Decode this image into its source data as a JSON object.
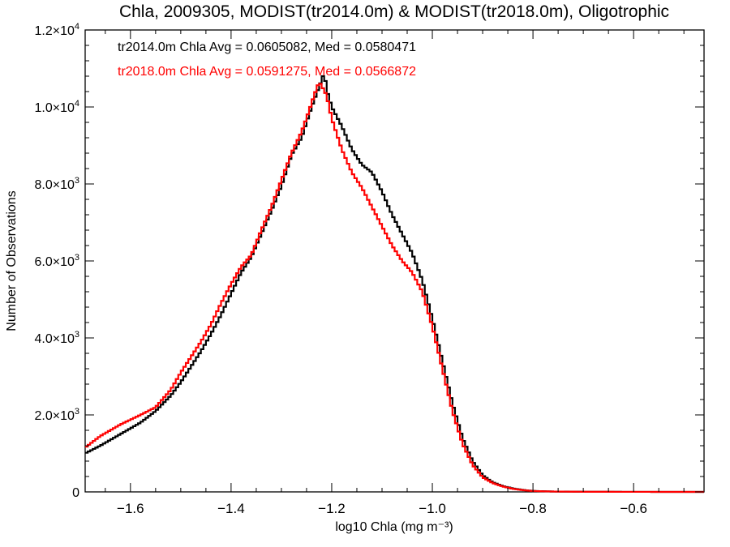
{
  "chart_data": {
    "type": "line",
    "title": "Chla, 2009305, MODIST(tr2014.0m) & MODIST(tr2018.0m), Oligotrophic",
    "xlabel": "log10 Chla (mg m⁻³)",
    "ylabel": "Number of Observations",
    "xlim": [
      -1.69,
      -0.46
    ],
    "ylim": [
      0,
      12000
    ],
    "x_ticks": [
      -1.6,
      -1.4,
      -1.2,
      -1.0,
      -0.8,
      -0.6
    ],
    "x_tick_labels": [
      "−1.6",
      "−1.4",
      "−1.2",
      "−1.0",
      "−0.8",
      "−0.6"
    ],
    "y_ticks": [
      {
        "value": 0,
        "mantissa": "0",
        "exponent": ""
      },
      {
        "value": 2000,
        "mantissa": "2.0×10",
        "exponent": "3"
      },
      {
        "value": 4000,
        "mantissa": "4.0×10",
        "exponent": "3"
      },
      {
        "value": 6000,
        "mantissa": "6.0×10",
        "exponent": "3"
      },
      {
        "value": 8000,
        "mantissa": "8.0×10",
        "exponent": "3"
      },
      {
        "value": 10000,
        "mantissa": "1.0×10",
        "exponent": "4"
      },
      {
        "value": 12000,
        "mantissa": "1.2×10",
        "exponent": "4"
      }
    ],
    "grid": false,
    "step": "histogram",
    "annotations": [
      {
        "text": "tr2014.0m Chla Avg = 0.0605082, Med = 0.0580471",
        "color": "#000000"
      },
      {
        "text": "tr2018.0m Chla Avg = 0.0591275, Med = 0.0566872",
        "color": "#ff0000"
      }
    ],
    "series": [
      {
        "color": "#000000",
        "points": [
          [
            -1.69,
            1000
          ],
          [
            -1.66,
            1200
          ],
          [
            -1.62,
            1500
          ],
          [
            -1.58,
            1800
          ],
          [
            -1.55,
            2100
          ],
          [
            -1.52,
            2500
          ],
          [
            -1.5,
            2850
          ],
          [
            -1.48,
            3250
          ],
          [
            -1.46,
            3650
          ],
          [
            -1.44,
            4100
          ],
          [
            -1.42,
            4600
          ],
          [
            -1.4,
            5150
          ],
          [
            -1.38,
            5700
          ],
          [
            -1.36,
            6100
          ],
          [
            -1.34,
            6700
          ],
          [
            -1.32,
            7300
          ],
          [
            -1.3,
            7950
          ],
          [
            -1.28,
            8750
          ],
          [
            -1.26,
            9200
          ],
          [
            -1.24,
            10000
          ],
          [
            -1.23,
            10350
          ],
          [
            -1.22,
            10700
          ],
          [
            -1.215,
            10900
          ],
          [
            -1.21,
            10450
          ],
          [
            -1.2,
            10000
          ],
          [
            -1.18,
            9500
          ],
          [
            -1.16,
            8900
          ],
          [
            -1.14,
            8500
          ],
          [
            -1.12,
            8300
          ],
          [
            -1.1,
            7800
          ],
          [
            -1.08,
            7200
          ],
          [
            -1.06,
            6700
          ],
          [
            -1.04,
            6200
          ],
          [
            -1.02,
            5500
          ],
          [
            -1.0,
            4500
          ],
          [
            -0.98,
            3400
          ],
          [
            -0.96,
            2300
          ],
          [
            -0.94,
            1400
          ],
          [
            -0.92,
            800
          ],
          [
            -0.9,
            430
          ],
          [
            -0.88,
            250
          ],
          [
            -0.86,
            150
          ],
          [
            -0.84,
            90
          ],
          [
            -0.82,
            50
          ],
          [
            -0.8,
            25
          ],
          [
            -0.76,
            10
          ],
          [
            -0.7,
            4
          ],
          [
            -0.6,
            1
          ],
          [
            -0.46,
            0
          ]
        ]
      },
      {
        "color": "#ff0000",
        "points": [
          [
            -1.69,
            1150
          ],
          [
            -1.66,
            1450
          ],
          [
            -1.62,
            1750
          ],
          [
            -1.58,
            2000
          ],
          [
            -1.55,
            2200
          ],
          [
            -1.52,
            2650
          ],
          [
            -1.5,
            3100
          ],
          [
            -1.48,
            3500
          ],
          [
            -1.46,
            3900
          ],
          [
            -1.44,
            4350
          ],
          [
            -1.42,
            4900
          ],
          [
            -1.4,
            5400
          ],
          [
            -1.38,
            5850
          ],
          [
            -1.36,
            6150
          ],
          [
            -1.34,
            6800
          ],
          [
            -1.32,
            7400
          ],
          [
            -1.3,
            8100
          ],
          [
            -1.28,
            8800
          ],
          [
            -1.26,
            9350
          ],
          [
            -1.245,
            9900
          ],
          [
            -1.235,
            10300
          ],
          [
            -1.225,
            10650
          ],
          [
            -1.22,
            10550
          ],
          [
            -1.21,
            10300
          ],
          [
            -1.2,
            9700
          ],
          [
            -1.18,
            8900
          ],
          [
            -1.16,
            8300
          ],
          [
            -1.14,
            7900
          ],
          [
            -1.12,
            7400
          ],
          [
            -1.1,
            6900
          ],
          [
            -1.08,
            6400
          ],
          [
            -1.06,
            6000
          ],
          [
            -1.04,
            5700
          ],
          [
            -1.02,
            5200
          ],
          [
            -1.0,
            4300
          ],
          [
            -0.98,
            3200
          ],
          [
            -0.96,
            2100
          ],
          [
            -0.94,
            1250
          ],
          [
            -0.92,
            700
          ],
          [
            -0.9,
            380
          ],
          [
            -0.88,
            230
          ],
          [
            -0.86,
            140
          ],
          [
            -0.84,
            80
          ],
          [
            -0.82,
            45
          ],
          [
            -0.8,
            22
          ],
          [
            -0.76,
            9
          ],
          [
            -0.7,
            3
          ],
          [
            -0.6,
            1
          ],
          [
            -0.46,
            0
          ]
        ]
      }
    ]
  }
}
